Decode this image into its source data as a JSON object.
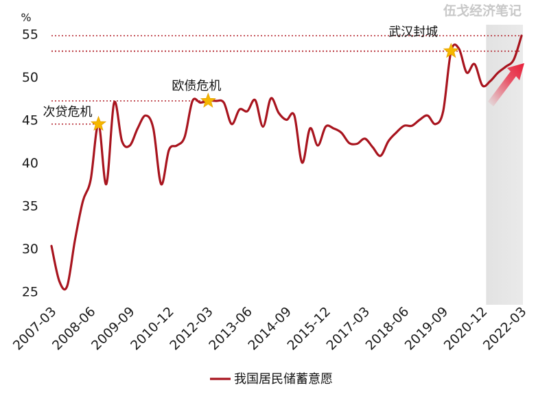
{
  "watermark": "伍戈经济笔记",
  "chart_data": {
    "type": "line",
    "ylabel": "%",
    "ylim": [
      24,
      56
    ],
    "yticks": [
      25,
      30,
      35,
      40,
      45,
      50,
      55
    ],
    "xticks": [
      "2007-03",
      "2008-06",
      "2009-09",
      "2010-12",
      "2012-03",
      "2013-06",
      "2014-09",
      "2015-12",
      "2017-03",
      "2018-06",
      "2019-09",
      "2020-12",
      "2022-03"
    ],
    "legend": "我国居民储蓄意愿",
    "legend_position": "bottom",
    "grid": false,
    "series": [
      {
        "name": "我国居民储蓄意愿",
        "color": "#a8141e",
        "x": [
          "2007-03",
          "2007-06",
          "2007-09",
          "2007-12",
          "2008-03",
          "2008-06",
          "2008-09",
          "2008-12",
          "2009-03",
          "2009-06",
          "2009-09",
          "2009-12",
          "2010-03",
          "2010-06",
          "2010-09",
          "2010-12",
          "2011-03",
          "2011-06",
          "2011-09",
          "2011-12",
          "2012-03",
          "2012-06",
          "2012-09",
          "2012-12",
          "2013-03",
          "2013-06",
          "2013-09",
          "2013-12",
          "2014-03",
          "2014-06",
          "2014-09",
          "2014-12",
          "2015-03",
          "2015-06",
          "2015-09",
          "2015-12",
          "2016-03",
          "2016-06",
          "2016-09",
          "2016-12",
          "2017-03",
          "2017-06",
          "2017-09",
          "2017-12",
          "2018-03",
          "2018-06",
          "2018-09",
          "2018-12",
          "2019-03",
          "2019-06",
          "2019-09",
          "2019-12",
          "2020-03",
          "2020-06",
          "2020-09",
          "2020-12",
          "2021-03",
          "2021-06",
          "2021-09",
          "2021-12",
          "2022-03"
        ],
        "values": [
          30.3,
          26.2,
          25.6,
          31.0,
          35.5,
          38.0,
          44.5,
          37.5,
          47.0,
          42.5,
          42.0,
          44.0,
          45.5,
          44.0,
          37.5,
          41.5,
          42.0,
          43.0,
          47.2,
          47.0,
          47.2,
          47.2,
          47.0,
          44.5,
          46.2,
          46.0,
          47.3,
          44.2,
          47.5,
          45.8,
          45.0,
          45.5,
          40.0,
          44.0,
          42.0,
          44.2,
          44.0,
          43.5,
          42.3,
          42.2,
          42.8,
          41.8,
          40.8,
          42.5,
          43.5,
          44.3,
          44.3,
          45.0,
          45.5,
          44.5,
          46.0,
          53.0,
          53.3,
          50.5,
          51.5,
          49.0,
          49.5,
          50.5,
          51.2,
          52.0,
          54.8
        ]
      }
    ],
    "annotations": [
      {
        "label": "次贷危机",
        "x": "2008-09",
        "value": 44.5
      },
      {
        "label": "欧债危机",
        "x": "2012-03",
        "value": 47.2
      },
      {
        "label": "武汉封城",
        "x": "2019-12",
        "value": 53.0
      }
    ],
    "reference_lines": [
      53.0,
      54.8
    ],
    "shaded_region": [
      "2021-03",
      "2022-03"
    ]
  }
}
